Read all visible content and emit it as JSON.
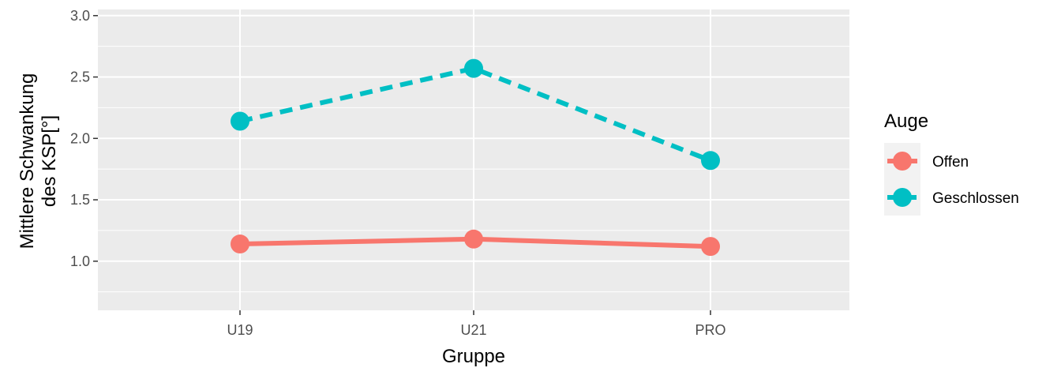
{
  "chart_data": {
    "type": "line",
    "categories": [
      "U19",
      "U21",
      "PRO"
    ],
    "xlabel": "Gruppe",
    "ylabel_lines": [
      "Mittlere Schwankung",
      "des KSP[°]"
    ],
    "ylim": [
      0.6,
      3.05
    ],
    "yticks": [
      1.0,
      1.5,
      2.0,
      2.5,
      3.0
    ],
    "ytick_labels": [
      "1.0",
      "1.5",
      "2.0",
      "2.5",
      "3.0"
    ],
    "grid": true,
    "legend": {
      "title": "Auge",
      "placement": "right"
    },
    "series": [
      {
        "name": "Offen",
        "values": [
          1.14,
          1.18,
          1.12
        ],
        "color": "#F8766D",
        "linestyle": "solid"
      },
      {
        "name": "Geschlossen",
        "values": [
          2.14,
          2.57,
          1.82
        ],
        "color": "#00BFC4",
        "linestyle": "dashed"
      }
    ]
  }
}
